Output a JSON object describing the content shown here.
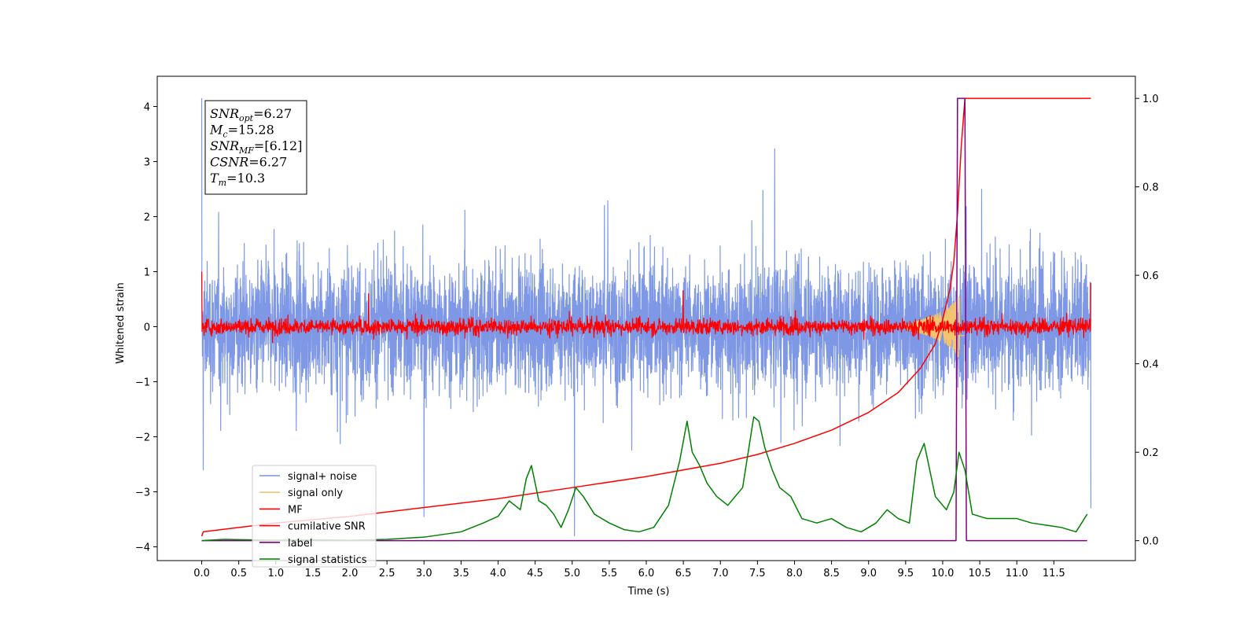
{
  "chart_data": {
    "type": "line",
    "title": "",
    "xlabel": "Time (s)",
    "ylabel": "Whitened strain",
    "y2label": "",
    "xlim": [
      -0.6,
      12.6
    ],
    "ylim": [
      -4.25,
      4.55
    ],
    "y2lim": [
      -0.045,
      1.05
    ],
    "x_ticks": [
      0.0,
      0.5,
      1.0,
      1.5,
      2.0,
      2.5,
      3.0,
      3.5,
      4.0,
      4.5,
      5.0,
      5.5,
      6.0,
      6.5,
      7.0,
      7.5,
      8.0,
      8.5,
      9.0,
      9.5,
      10.0,
      10.5,
      11.0,
      11.5
    ],
    "x_tick_labels": [
      "0.0",
      "0.5",
      "1.0",
      "1.5",
      "2.0",
      "2.5",
      "3.0",
      "3.5",
      "4.0",
      "4.5",
      "5.0",
      "5.5",
      "6.0",
      "6.5",
      "7.0",
      "7.5",
      "8.0",
      "8.5",
      "9.0",
      "9.5",
      "10.0",
      "10.5",
      "11.0",
      "11.5"
    ],
    "y_ticks": [
      -4,
      -3,
      -2,
      -1,
      0,
      1,
      2,
      3,
      4
    ],
    "y_tick_labels": [
      "−4",
      "−3",
      "−2",
      "−1",
      "0",
      "1",
      "2",
      "3",
      "4"
    ],
    "y2_ticks": [
      0.0,
      0.2,
      0.4,
      0.6,
      0.8,
      1.0
    ],
    "y2_tick_labels": [
      "0.0",
      "0.2",
      "0.4",
      "0.6",
      "0.8",
      "1.0"
    ],
    "legend_position": "lower-left",
    "annotation": {
      "lines": [
        {
          "base": "SNR",
          "sub": "opt",
          "value": "=6.27"
        },
        {
          "base": "M",
          "sub": "c",
          "value": "=15.28"
        },
        {
          "base": "SNR",
          "sub": "MF",
          "value": "=[6.12]"
        },
        {
          "base": "CSNR",
          "sub": "",
          "value": "=6.27"
        },
        {
          "base": "T",
          "sub": "m",
          "value": "=10.3"
        }
      ]
    },
    "series": [
      {
        "name": "signal+ noise",
        "axis": "left",
        "color": "#7792e5",
        "kind": "noise",
        "x_range": [
          0.0,
          12.0
        ],
        "amplitude": 1.7,
        "peaks": [
          [
            0.0,
            4.15
          ],
          [
            5.03,
            4.05
          ],
          [
            0.02,
            -2.6
          ],
          [
            3.0,
            -3.45
          ],
          [
            5.03,
            -3.8
          ],
          [
            12.0,
            -3.3
          ]
        ]
      },
      {
        "name": "signal only",
        "axis": "left",
        "color": "#f2c46f",
        "kind": "chirp",
        "x_range": [
          9.5,
          10.3
        ],
        "amplitude_peak": 0.55,
        "peak_time": 10.25
      },
      {
        "name": "MF",
        "axis": "left",
        "color": "#ff0000",
        "kind": "noise",
        "x_range": [
          0.0,
          12.0
        ],
        "amplitude": 0.22,
        "peaks": [
          [
            0.0,
            1.0
          ],
          [
            12.0,
            0.8
          ],
          [
            2.25,
            0.6
          ],
          [
            6.5,
            0.65
          ]
        ]
      },
      {
        "name": "cumilative SNR",
        "axis": "right",
        "color": "#ff0000",
        "kind": "line",
        "x": [
          0.0,
          0.02,
          1.0,
          2.0,
          3.0,
          4.0,
          5.0,
          6.0,
          7.0,
          7.5,
          8.0,
          8.5,
          9.0,
          9.4,
          9.7,
          9.9,
          10.0,
          10.1,
          10.15,
          10.2,
          10.25,
          10.3,
          12.0
        ],
        "values": [
          0.01,
          0.02,
          0.04,
          0.055,
          0.075,
          0.095,
          0.12,
          0.145,
          0.175,
          0.195,
          0.22,
          0.25,
          0.29,
          0.335,
          0.39,
          0.445,
          0.5,
          0.57,
          0.63,
          0.74,
          0.89,
          1.0,
          1.0
        ]
      },
      {
        "name": "label",
        "axis": "right",
        "color": "#800080",
        "kind": "line",
        "x": [
          0.0,
          10.18,
          10.2,
          10.3,
          10.32,
          11.95
        ],
        "values": [
          0.0,
          0.0,
          1.0,
          1.0,
          0.0,
          0.0
        ]
      },
      {
        "name": "signal statistics",
        "axis": "right",
        "color": "#008000",
        "kind": "line",
        "x": [
          0.0,
          0.3,
          0.6,
          1.0,
          1.5,
          2.0,
          2.5,
          3.0,
          3.5,
          3.8,
          4.0,
          4.15,
          4.3,
          4.38,
          4.45,
          4.55,
          4.65,
          4.75,
          4.85,
          4.95,
          5.05,
          5.15,
          5.3,
          5.5,
          5.7,
          5.9,
          6.1,
          6.3,
          6.45,
          6.55,
          6.62,
          6.72,
          6.82,
          6.95,
          7.1,
          7.3,
          7.45,
          7.52,
          7.6,
          7.7,
          7.8,
          7.95,
          8.1,
          8.3,
          8.5,
          8.7,
          8.9,
          9.1,
          9.25,
          9.4,
          9.55,
          9.65,
          9.75,
          9.9,
          10.05,
          10.15,
          10.22,
          10.3,
          10.4,
          10.6,
          10.8,
          11.0,
          11.2,
          11.4,
          11.6,
          11.8,
          11.95
        ],
        "values": [
          0.0,
          0.003,
          0.002,
          0.001,
          0.002,
          0.001,
          0.003,
          0.008,
          0.02,
          0.04,
          0.055,
          0.09,
          0.07,
          0.14,
          0.17,
          0.09,
          0.08,
          0.06,
          0.03,
          0.07,
          0.12,
          0.1,
          0.06,
          0.04,
          0.025,
          0.02,
          0.03,
          0.08,
          0.18,
          0.27,
          0.2,
          0.17,
          0.13,
          0.1,
          0.08,
          0.12,
          0.28,
          0.27,
          0.21,
          0.16,
          0.12,
          0.1,
          0.05,
          0.04,
          0.05,
          0.03,
          0.02,
          0.04,
          0.07,
          0.05,
          0.04,
          0.18,
          0.22,
          0.1,
          0.07,
          0.11,
          0.2,
          0.16,
          0.06,
          0.05,
          0.05,
          0.05,
          0.04,
          0.035,
          0.03,
          0.02,
          0.06
        ]
      }
    ]
  }
}
